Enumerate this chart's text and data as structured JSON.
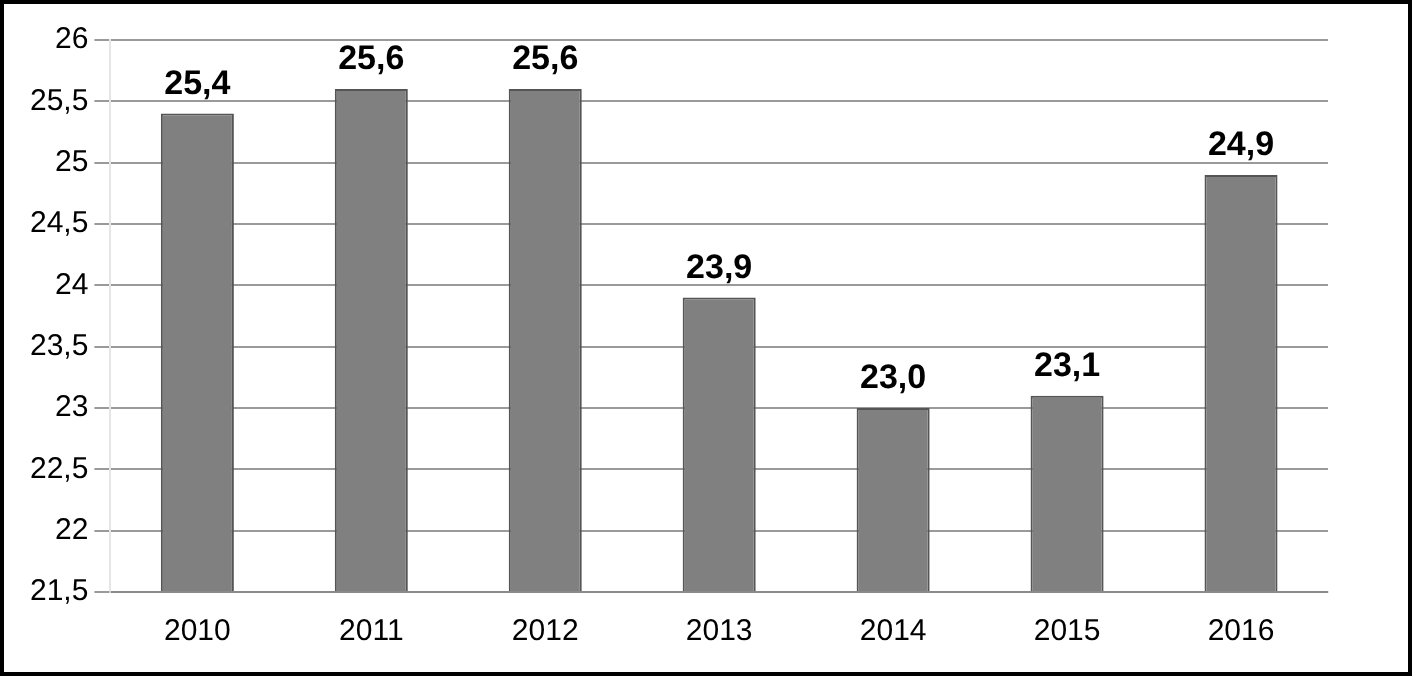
{
  "chart_data": {
    "type": "bar",
    "categories": [
      "2010",
      "2011",
      "2012",
      "2013",
      "2014",
      "2015",
      "2016"
    ],
    "values": [
      25.4,
      25.6,
      25.6,
      23.9,
      23.0,
      23.1,
      24.9
    ],
    "value_labels": [
      "25,4",
      "25,6",
      "25,6",
      "23,9",
      "23,0",
      "23,1",
      "24,9"
    ],
    "color": "#808080",
    "ylim": [
      21.5,
      26
    ],
    "yticks": [
      {
        "value": 21.5,
        "label": "21,5"
      },
      {
        "value": 22,
        "label": "22"
      },
      {
        "value": 22.5,
        "label": "22,5"
      },
      {
        "value": 23,
        "label": "23"
      },
      {
        "value": 23.5,
        "label": "23,5"
      },
      {
        "value": 24,
        "label": "24"
      },
      {
        "value": 24.5,
        "label": "24,5"
      },
      {
        "value": 25,
        "label": "25"
      },
      {
        "value": 25.5,
        "label": "25,5"
      },
      {
        "value": 26,
        "label": "26"
      }
    ],
    "grid": "y"
  }
}
